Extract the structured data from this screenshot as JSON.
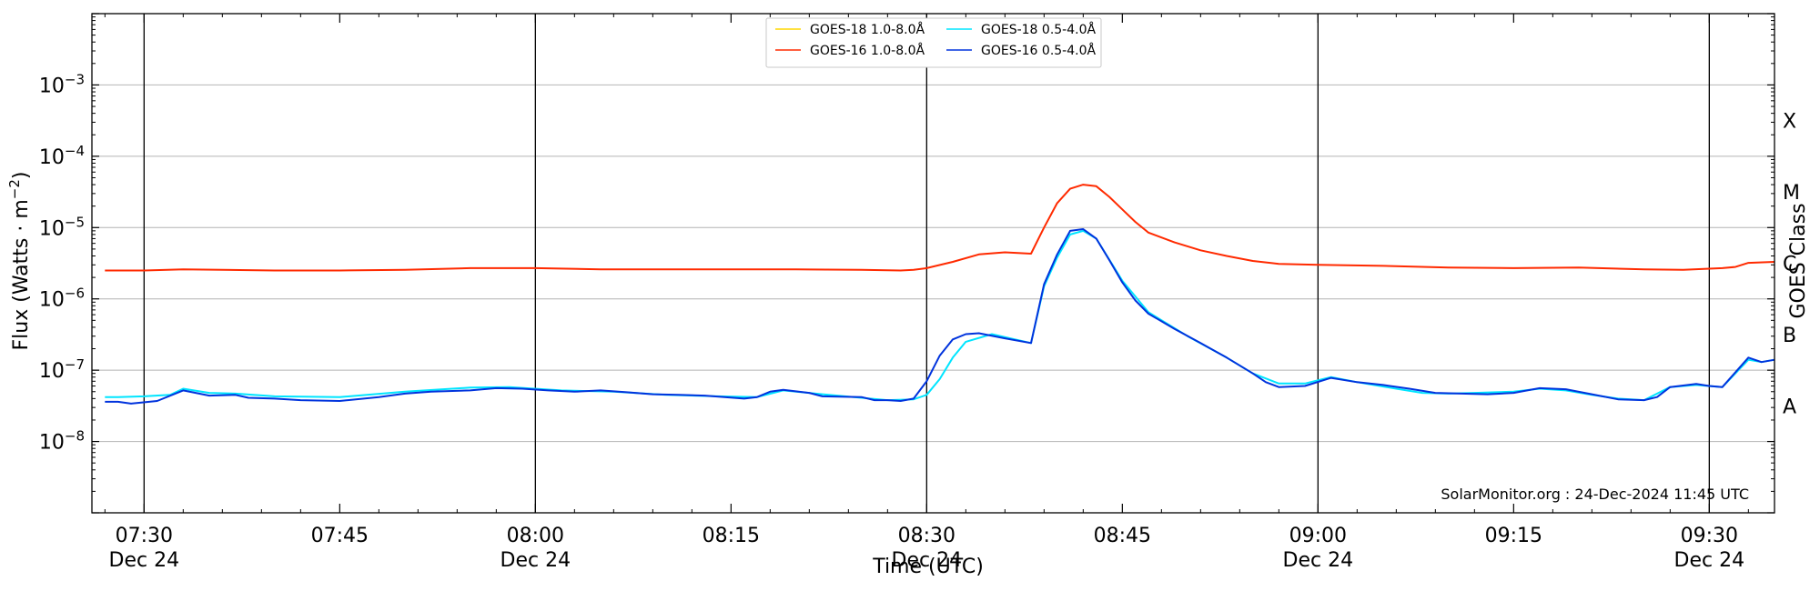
{
  "chart_data": {
    "type": "line",
    "xlabel": "Time (UTC)",
    "ylabel_main": "Flux (Watts · m",
    "ylabel_sup": "−2",
    "ylabel_close": ")",
    "y2label": "GOES Class",
    "yscale": "log",
    "xlim_minutes": [
      -4,
      125
    ],
    "ylim": [
      1e-09,
      0.01
    ],
    "grid": "horizontal",
    "legend_position": "top-center",
    "credit": "SolarMonitor.org : 24-Dec-2024 11:45 UTC",
    "x_ticks": [
      {
        "minute": 0,
        "time": "07:30",
        "date": "Dec 24",
        "vline": true
      },
      {
        "minute": 15,
        "time": "07:45",
        "date": "",
        "vline": false
      },
      {
        "minute": 30,
        "time": "08:00",
        "date": "Dec 24",
        "vline": true
      },
      {
        "minute": 45,
        "time": "08:15",
        "date": "",
        "vline": false
      },
      {
        "minute": 60,
        "time": "08:30",
        "date": "Dec 24",
        "vline": true
      },
      {
        "minute": 75,
        "time": "08:45",
        "date": "",
        "vline": false
      },
      {
        "minute": 90,
        "time": "09:00",
        "date": "Dec 24",
        "vline": true
      },
      {
        "minute": 105,
        "time": "09:15",
        "date": "",
        "vline": false
      },
      {
        "minute": 120,
        "time": "09:30",
        "date": "Dec 24",
        "vline": true
      }
    ],
    "y_ticks": [
      {
        "value": 1e-08,
        "mantissa": "10",
        "exp": "−8"
      },
      {
        "value": 1e-07,
        "mantissa": "10",
        "exp": "−7"
      },
      {
        "value": 1e-06,
        "mantissa": "10",
        "exp": "−6"
      },
      {
        "value": 1e-05,
        "mantissa": "10",
        "exp": "−5"
      },
      {
        "value": 0.0001,
        "mantissa": "10",
        "exp": "−4"
      },
      {
        "value": 0.001,
        "mantissa": "10",
        "exp": "−3"
      }
    ],
    "goes_classes": [
      {
        "label": "A",
        "value": 3.16e-08
      },
      {
        "label": "B",
        "value": 3.16e-07
      },
      {
        "label": "C",
        "value": 3.16e-06
      },
      {
        "label": "M",
        "value": 3.16e-05
      },
      {
        "label": "X",
        "value": 0.000316
      }
    ],
    "series": [
      {
        "name": "GOES-18 1.0-8.0Å",
        "color": "#ffd700",
        "points": []
      },
      {
        "name": "GOES-16 1.0-8.0Å",
        "color": "#ff2a00",
        "points": [
          [
            -3,
            2.5e-06
          ],
          [
            0,
            2.5e-06
          ],
          [
            3,
            2.6e-06
          ],
          [
            6,
            2.55e-06
          ],
          [
            10,
            2.5e-06
          ],
          [
            15,
            2.5e-06
          ],
          [
            20,
            2.55e-06
          ],
          [
            25,
            2.7e-06
          ],
          [
            30,
            2.7e-06
          ],
          [
            35,
            2.6e-06
          ],
          [
            40,
            2.6e-06
          ],
          [
            45,
            2.6e-06
          ],
          [
            50,
            2.6e-06
          ],
          [
            55,
            2.55e-06
          ],
          [
            58,
            2.5e-06
          ],
          [
            59,
            2.55e-06
          ],
          [
            60,
            2.7e-06
          ],
          [
            62,
            3.3e-06
          ],
          [
            64,
            4.2e-06
          ],
          [
            66,
            4.5e-06
          ],
          [
            68,
            4.3e-06
          ],
          [
            69,
            1e-05
          ],
          [
            70,
            2.2e-05
          ],
          [
            71,
            3.5e-05
          ],
          [
            72,
            4e-05
          ],
          [
            73,
            3.8e-05
          ],
          [
            74,
            2.7e-05
          ],
          [
            75,
            1.8e-05
          ],
          [
            76,
            1.2e-05
          ],
          [
            77,
            8.5e-06
          ],
          [
            79,
            6.2e-06
          ],
          [
            81,
            4.8e-06
          ],
          [
            83,
            4e-06
          ],
          [
            85,
            3.4e-06
          ],
          [
            87,
            3.1e-06
          ],
          [
            90,
            3e-06
          ],
          [
            95,
            2.9e-06
          ],
          [
            100,
            2.75e-06
          ],
          [
            105,
            2.7e-06
          ],
          [
            110,
            2.75e-06
          ],
          [
            115,
            2.6e-06
          ],
          [
            118,
            2.55e-06
          ],
          [
            121,
            2.7e-06
          ],
          [
            122,
            2.8e-06
          ],
          [
            123,
            3.2e-06
          ],
          [
            125,
            3.3e-06
          ]
        ]
      },
      {
        "name": "GOES-18 0.5-4.0Å",
        "color": "#00e5ff",
        "points": [
          [
            -3,
            4.2e-08
          ],
          [
            -2,
            4.2e-08
          ],
          [
            0,
            4.3e-08
          ],
          [
            2,
            4.5e-08
          ],
          [
            3,
            5.5e-08
          ],
          [
            5,
            4.8e-08
          ],
          [
            7,
            4.7e-08
          ],
          [
            10,
            4.3e-08
          ],
          [
            15,
            4.2e-08
          ],
          [
            20,
            5e-08
          ],
          [
            25,
            5.7e-08
          ],
          [
            28,
            5.8e-08
          ],
          [
            32,
            5.2e-08
          ],
          [
            36,
            5e-08
          ],
          [
            40,
            4.5e-08
          ],
          [
            44,
            4.3e-08
          ],
          [
            47,
            4.2e-08
          ],
          [
            49,
            5.2e-08
          ],
          [
            52,
            4.6e-08
          ],
          [
            55,
            4.1e-08
          ],
          [
            57,
            3.8e-08
          ],
          [
            59,
            3.9e-08
          ],
          [
            60,
            4.5e-08
          ],
          [
            61,
            7.5e-08
          ],
          [
            62,
            1.5e-07
          ],
          [
            63,
            2.5e-07
          ],
          [
            65,
            3.2e-07
          ],
          [
            68,
            2.4e-07
          ],
          [
            69,
            1.5e-06
          ],
          [
            70,
            3.8e-06
          ],
          [
            71,
            8e-06
          ],
          [
            72,
            9e-06
          ],
          [
            73,
            7e-06
          ],
          [
            75,
            1.8e-06
          ],
          [
            77,
            6.5e-07
          ],
          [
            80,
            3e-07
          ],
          [
            83,
            1.5e-07
          ],
          [
            85,
            9e-08
          ],
          [
            87,
            6.5e-08
          ],
          [
            89,
            6.5e-08
          ],
          [
            91,
            8e-08
          ],
          [
            93,
            6.8e-08
          ],
          [
            96,
            5.5e-08
          ],
          [
            98,
            4.8e-08
          ],
          [
            100,
            4.7e-08
          ],
          [
            102,
            4.8e-08
          ],
          [
            105,
            5e-08
          ],
          [
            107,
            5.5e-08
          ],
          [
            109,
            5.2e-08
          ],
          [
            111,
            4.5e-08
          ],
          [
            113,
            4e-08
          ],
          [
            115,
            3.8e-08
          ],
          [
            117,
            5.8e-08
          ],
          [
            119,
            6.2e-08
          ],
          [
            121,
            5.8e-08
          ],
          [
            123,
            1.4e-07
          ],
          [
            124,
            1.3e-07
          ],
          [
            125,
            1.4e-07
          ]
        ]
      },
      {
        "name": "GOES-16 0.5-4.0Å",
        "color": "#0033dd",
        "points": [
          [
            -3,
            3.6e-08
          ],
          [
            -2,
            3.6e-08
          ],
          [
            -1,
            3.4e-08
          ],
          [
            1,
            3.7e-08
          ],
          [
            3,
            5.2e-08
          ],
          [
            5,
            4.4e-08
          ],
          [
            7,
            4.5e-08
          ],
          [
            8,
            4.1e-08
          ],
          [
            10,
            4e-08
          ],
          [
            12,
            3.8e-08
          ],
          [
            15,
            3.7e-08
          ],
          [
            18,
            4.2e-08
          ],
          [
            20,
            4.7e-08
          ],
          [
            22,
            5e-08
          ],
          [
            25,
            5.2e-08
          ],
          [
            27,
            5.6e-08
          ],
          [
            29,
            5.5e-08
          ],
          [
            31,
            5.2e-08
          ],
          [
            33,
            5e-08
          ],
          [
            35,
            5.2e-08
          ],
          [
            37,
            4.9e-08
          ],
          [
            39,
            4.6e-08
          ],
          [
            41,
            4.5e-08
          ],
          [
            43,
            4.4e-08
          ],
          [
            46,
            4e-08
          ],
          [
            47,
            4.2e-08
          ],
          [
            48,
            5e-08
          ],
          [
            49,
            5.3e-08
          ],
          [
            51,
            4.8e-08
          ],
          [
            52,
            4.3e-08
          ],
          [
            55,
            4.2e-08
          ],
          [
            56,
            3.8e-08
          ],
          [
            57,
            3.8e-08
          ],
          [
            58,
            3.7e-08
          ],
          [
            59,
            4e-08
          ],
          [
            60,
            7e-08
          ],
          [
            61,
            1.6e-07
          ],
          [
            62,
            2.7e-07
          ],
          [
            63,
            3.2e-07
          ],
          [
            64,
            3.3e-07
          ],
          [
            66,
            2.8e-07
          ],
          [
            68,
            2.4e-07
          ],
          [
            69,
            1.6e-06
          ],
          [
            70,
            4.2e-06
          ],
          [
            71,
            9e-06
          ],
          [
            72,
            9.5e-06
          ],
          [
            73,
            7e-06
          ],
          [
            74,
            3.5e-06
          ],
          [
            75,
            1.7e-06
          ],
          [
            76,
            9.5e-07
          ],
          [
            77,
            6.2e-07
          ],
          [
            79,
            3.8e-07
          ],
          [
            81,
            2.4e-07
          ],
          [
            83,
            1.5e-07
          ],
          [
            85,
            9e-08
          ],
          [
            86,
            6.8e-08
          ],
          [
            87,
            5.8e-08
          ],
          [
            89,
            6e-08
          ],
          [
            91,
            7.8e-08
          ],
          [
            93,
            6.8e-08
          ],
          [
            95,
            6.2e-08
          ],
          [
            97,
            5.5e-08
          ],
          [
            99,
            4.8e-08
          ],
          [
            101,
            4.7e-08
          ],
          [
            103,
            4.6e-08
          ],
          [
            105,
            4.8e-08
          ],
          [
            107,
            5.6e-08
          ],
          [
            109,
            5.4e-08
          ],
          [
            111,
            4.6e-08
          ],
          [
            113,
            3.9e-08
          ],
          [
            115,
            3.8e-08
          ],
          [
            116,
            4.2e-08
          ],
          [
            117,
            5.8e-08
          ],
          [
            119,
            6.4e-08
          ],
          [
            120,
            6e-08
          ],
          [
            121,
            5.8e-08
          ],
          [
            123,
            1.5e-07
          ],
          [
            124,
            1.3e-07
          ],
          [
            125,
            1.4e-07
          ]
        ]
      }
    ]
  }
}
